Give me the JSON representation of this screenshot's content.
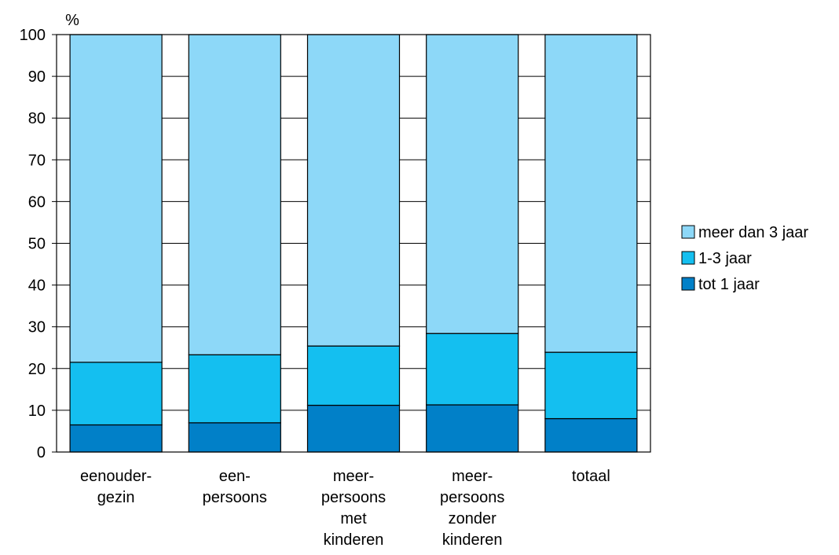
{
  "chart_data": {
    "type": "bar",
    "stacked": true,
    "ylabel": "%",
    "ylim": [
      0,
      100
    ],
    "yticks": [
      0,
      10,
      20,
      30,
      40,
      50,
      60,
      70,
      80,
      90,
      100
    ],
    "grid": true,
    "legend_position": "right",
    "categories": [
      [
        "eenouder-",
        "gezin"
      ],
      [
        "een-",
        "persoons"
      ],
      [
        "meer-",
        "persoons",
        "met",
        "kinderen"
      ],
      [
        "meer-",
        "persoons",
        "zonder",
        "kinderen"
      ],
      [
        "totaal"
      ]
    ],
    "series": [
      {
        "name": "tot 1 jaar",
        "color": "#0180c8",
        "values": [
          6.5,
          7,
          11.2,
          11.3,
          8
        ]
      },
      {
        "name": "1-3 jaar",
        "color": "#14bff0",
        "values": [
          15,
          16.3,
          14.2,
          17.1,
          15.9
        ]
      },
      {
        "name": "meer dan 3 jaar",
        "color": "#8dd8f8",
        "values": [
          78.5,
          76.7,
          74.6,
          71.6,
          76.1
        ]
      }
    ],
    "legend_order": [
      "meer dan 3 jaar",
      "1-3 jaar",
      "tot 1 jaar"
    ]
  }
}
